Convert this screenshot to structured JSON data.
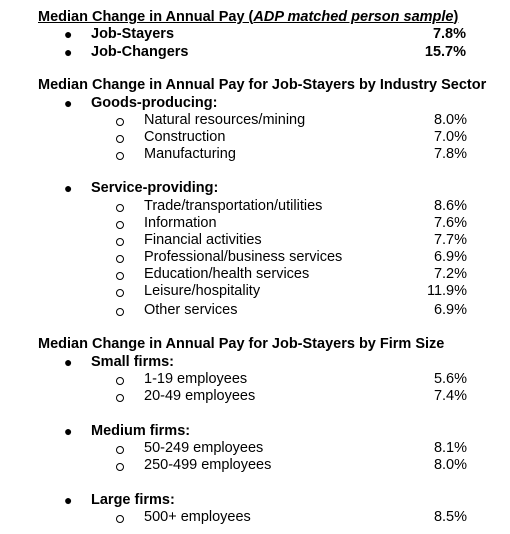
{
  "heading1": {
    "prefix": "Median Change in Annual Pay (",
    "italic": "ADP matched person sample",
    "suffix": ")"
  },
  "overall": [
    {
      "label": "Job-Stayers",
      "value": "7.8%"
    },
    {
      "label": "Job-Changers",
      "value": "15.7%"
    }
  ],
  "heading2": "Median Change in Annual Pay for Job-Stayers by Industry Sector",
  "goods": {
    "label": "Goods-producing:",
    "items": [
      {
        "label": "Natural resources/mining",
        "value": "8.0%"
      },
      {
        "label": "Construction",
        "value": "7.0%"
      },
      {
        "label": "Manufacturing",
        "value": "7.8%"
      }
    ]
  },
  "services": {
    "label": "Service-providing:",
    "items": [
      {
        "label": "Trade/transportation/utilities",
        "value": "8.6%"
      },
      {
        "label": "Information",
        "value": "7.6%"
      },
      {
        "label": "Financial activities",
        "value": "7.7%"
      },
      {
        "label": "Professional/business services",
        "value": "6.9%"
      },
      {
        "label": "Education/health services",
        "value": "7.2%"
      },
      {
        "label": "Leisure/hospitality",
        "value": "11.9%"
      },
      {
        "label": "Other services",
        "value": "6.9%"
      }
    ]
  },
  "heading3": "Median Change in Annual Pay for Job-Stayers by Firm Size",
  "small": {
    "label": "Small firms:",
    "items": [
      {
        "label": "1-19 employees",
        "value": "5.6%"
      },
      {
        "label": "20-49 employees",
        "value": "7.4%"
      }
    ]
  },
  "medium": {
    "label": "Medium firms:",
    "items": [
      {
        "label": "50-249 employees",
        "value": "8.1%"
      },
      {
        "label": "250-499 employees",
        "value": "8.0%"
      }
    ]
  },
  "large": {
    "label": "Large firms:",
    "items": [
      {
        "label": "500+ employees",
        "value": "8.5%"
      }
    ]
  }
}
